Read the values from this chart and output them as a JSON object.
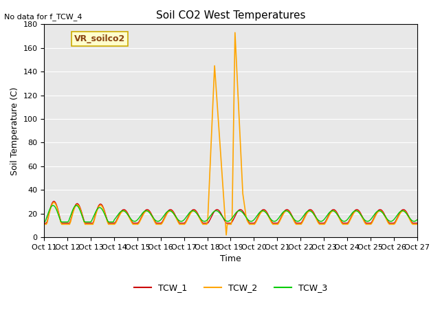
{
  "title": "Soil CO2 West Temperatures",
  "no_data_text": "No data for f_TCW_4",
  "legend_label_text": "VR_soilco2",
  "xlabel": "Time",
  "ylabel": "Soil Temperature (C)",
  "ylim": [
    0,
    180
  ],
  "yticks": [
    0,
    20,
    40,
    60,
    80,
    100,
    120,
    140,
    160,
    180
  ],
  "xtick_labels": [
    "Oct 12",
    "Oct 13",
    "Oct 14",
    "Oct 15",
    "Oct 16",
    "Oct 17",
    "Oct 18",
    "Oct 19",
    "Oct 20",
    "Oct 21",
    "Oct 22",
    "Oct 23",
    "Oct 24",
    "Oct 25",
    "Oct 26",
    "Oct 27"
  ],
  "bg_color": "#e8e8e8",
  "line_colors": {
    "TCW_1": "#cc0000",
    "TCW_2": "#ffa500",
    "TCW_3": "#00cc00"
  },
  "legend_entries": [
    "TCW_1",
    "TCW_2",
    "TCW_3"
  ]
}
